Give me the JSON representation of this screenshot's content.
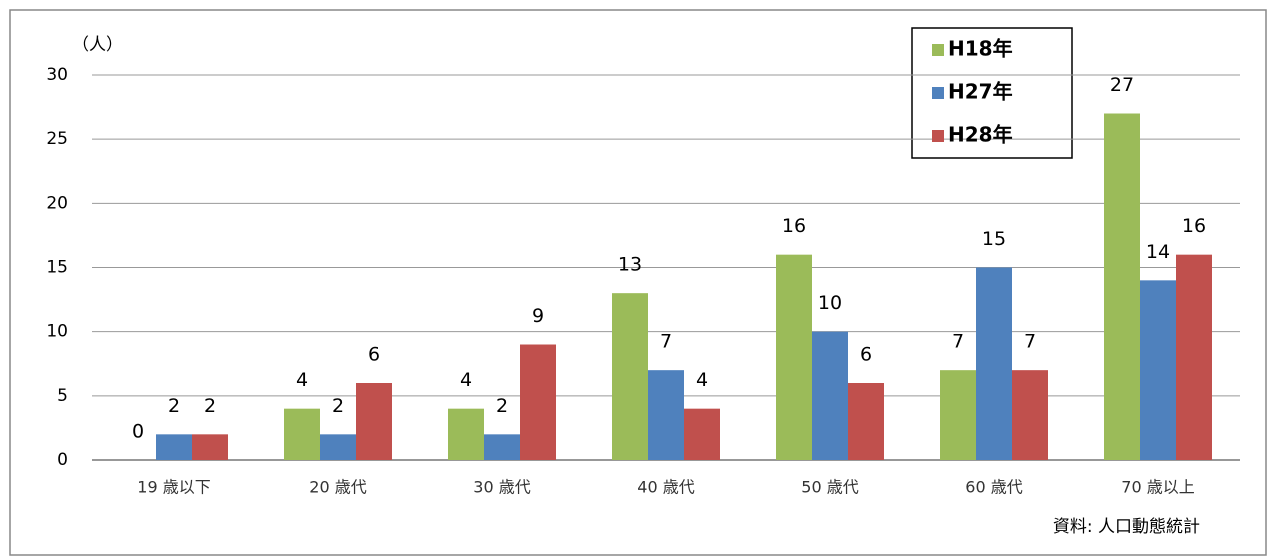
{
  "chart_data": {
    "type": "bar",
    "y_label": "（人）",
    "source": "資料: 人口動態統計",
    "categories": [
      "19 歳以下",
      "20 歳代",
      "30 歳代",
      "40 歳代",
      "50 歳代",
      "60 歳代",
      "70 歳以上"
    ],
    "series": [
      {
        "name": "H18年",
        "color": "#9bbb59",
        "values": [
          0,
          4,
          4,
          13,
          16,
          7,
          27
        ]
      },
      {
        "name": "H27年",
        "color": "#4f81bd",
        "values": [
          2,
          2,
          2,
          7,
          10,
          15,
          14
        ]
      },
      {
        "name": "H28年",
        "color": "#c0504d",
        "values": [
          2,
          6,
          9,
          4,
          6,
          7,
          16
        ]
      }
    ],
    "ylim": [
      0,
      30
    ],
    "yticks": [
      0,
      5,
      10,
      15,
      20,
      25,
      30
    ],
    "grid": true
  }
}
